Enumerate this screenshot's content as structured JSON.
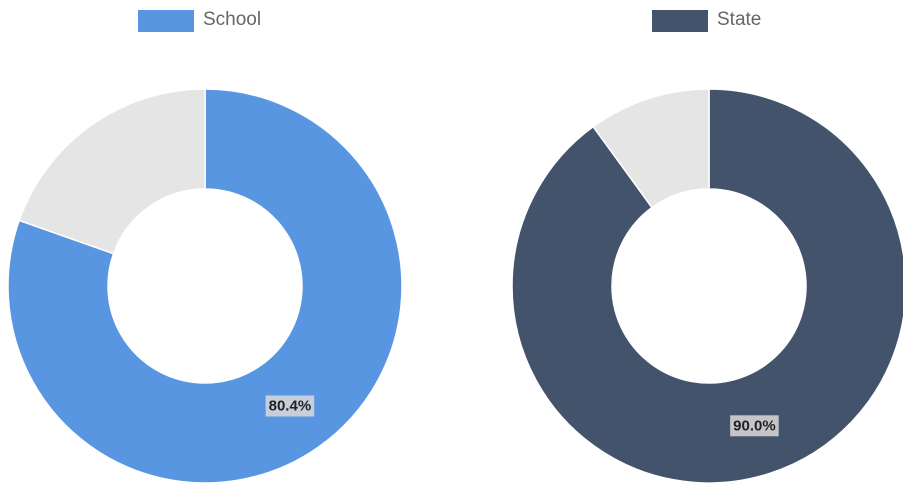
{
  "chart_data": [
    {
      "type": "pie",
      "legend": {
        "label": "School",
        "color": "#5996e2",
        "placement": "top"
      },
      "series": [
        {
          "name": "School",
          "values": [
            80.4,
            19.6
          ],
          "colors": [
            "#5996e2",
            "#e5e5e5"
          ]
        }
      ],
      "data_label": "80.4%"
    },
    {
      "type": "pie",
      "legend": {
        "label": "State",
        "color": "#43536b",
        "placement": "top"
      },
      "series": [
        {
          "name": "State",
          "values": [
            90.0,
            10.0
          ],
          "colors": [
            "#43536b",
            "#e5e5e5"
          ]
        }
      ],
      "data_label": "90.0%"
    }
  ]
}
